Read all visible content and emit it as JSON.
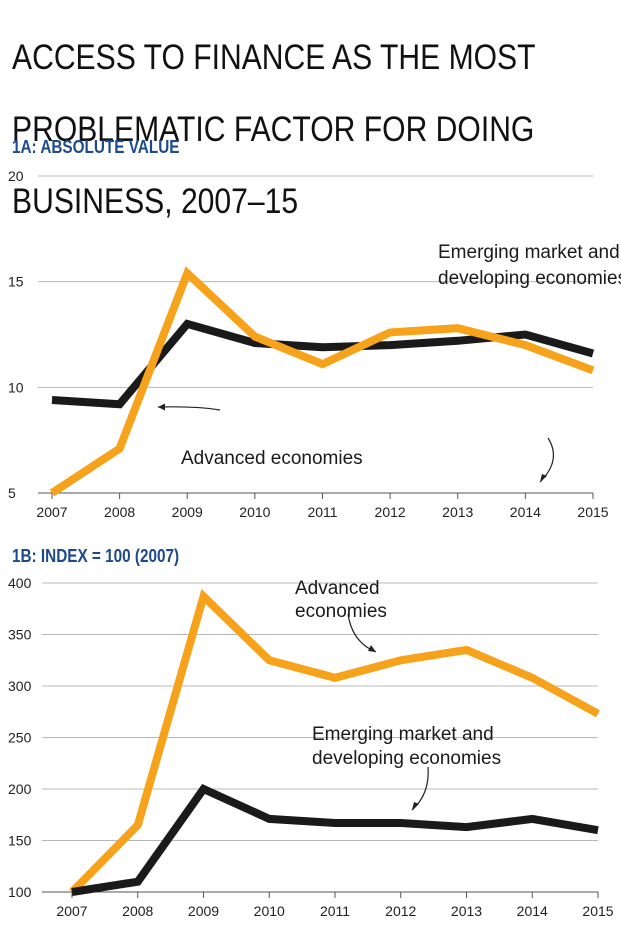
{
  "title_lines": [
    "ACCESS TO FINANCE AS THE MOST",
    "PROBLEMATIC FACTOR FOR DOING",
    "BUSINESS, 2007–15"
  ],
  "colors": {
    "advanced": "#f7a21b",
    "emerging": "#1a1a1a",
    "subtitle": "#1d4a8c"
  },
  "chart_data": [
    {
      "type": "line",
      "title": "1A: ABSOLUTE VALUE",
      "x": [
        "2007",
        "2008",
        "2009",
        "2010",
        "2011",
        "2012",
        "2013",
        "2014",
        "2015"
      ],
      "ylim": [
        5,
        20
      ],
      "yticks": [
        5,
        10,
        15,
        20
      ],
      "grid": true,
      "series": [
        {
          "name": "Emerging market and developing economies",
          "color": "#1a1a1a",
          "values": [
            9.4,
            9.2,
            13.0,
            12.1,
            11.9,
            12.0,
            12.2,
            12.5,
            11.6
          ]
        },
        {
          "name": "Advanced economies",
          "color": "#f7a21b",
          "values": [
            5.0,
            7.1,
            15.4,
            12.4,
            11.1,
            12.6,
            12.8,
            12.0,
            10.8
          ]
        }
      ],
      "annotations": [
        {
          "series": "Emerging market and developing economies",
          "lines": [
            "Emerging market and",
            "developing economies"
          ]
        },
        {
          "series": "Advanced economies",
          "lines": [
            "Advanced economies"
          ]
        }
      ]
    },
    {
      "type": "line",
      "title": "1B: INDEX = 100 (2007)",
      "x": [
        "2007",
        "2008",
        "2009",
        "2010",
        "2011",
        "2012",
        "2013",
        "2014",
        "2015"
      ],
      "ylim": [
        100,
        400
      ],
      "yticks": [
        100,
        150,
        200,
        250,
        300,
        350,
        400
      ],
      "grid": true,
      "series": [
        {
          "name": "Advanced economies",
          "color": "#f7a21b",
          "values": [
            100,
            165,
            387,
            325,
            308,
            325,
            335,
            308,
            273
          ]
        },
        {
          "name": "Emerging market and developing economies",
          "color": "#1a1a1a",
          "values": [
            100,
            110,
            200,
            171,
            167,
            167,
            163,
            171,
            160
          ]
        }
      ],
      "annotations": [
        {
          "series": "Advanced economies",
          "lines": [
            "Advanced",
            "economies"
          ]
        },
        {
          "series": "Emerging market and developing economies",
          "lines": [
            "Emerging market and",
            "developing economies"
          ]
        }
      ]
    }
  ]
}
